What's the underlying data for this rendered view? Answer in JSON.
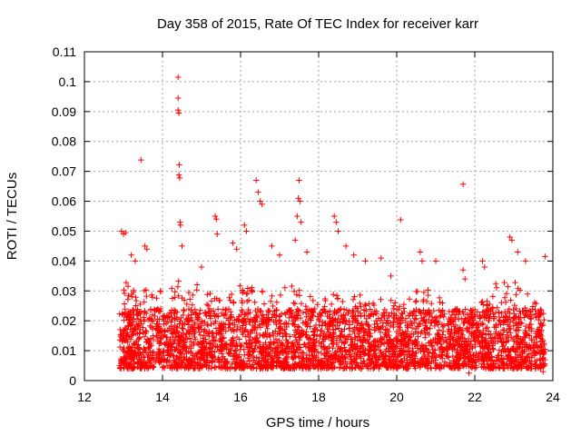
{
  "chart_data": {
    "type": "scatter",
    "title": "Day 358 of 2015, Rate Of TEC Index for receiver karr",
    "xlabel": "GPS time / hours",
    "ylabel": "ROTI / TECUs",
    "xlim": [
      12,
      24
    ],
    "ylim": [
      0,
      0.11
    ],
    "xticks": [
      12,
      14,
      16,
      18,
      20,
      22,
      24
    ],
    "yticks": [
      0,
      0.01,
      0.02,
      0.03,
      0.04,
      0.05,
      0.06,
      0.07,
      0.08,
      0.09,
      0.1,
      0.11
    ],
    "xtick_labels": [
      "12",
      "14",
      "16",
      "18",
      "20",
      "22",
      "24"
    ],
    "ytick_labels": [
      "0",
      "0.01",
      "0.02",
      "0.03",
      "0.04",
      "0.05",
      "0.06",
      "0.07",
      "0.08",
      "0.09",
      "0.1",
      "0.11"
    ],
    "grid": true,
    "marker": "+",
    "color": "#ff0000",
    "series": [
      {
        "name": "ROTI",
        "time_range": [
          12.9,
          23.8
        ],
        "points": [
          [
            14.4,
            0.1015
          ],
          [
            14.4,
            0.0945
          ],
          [
            14.4,
            0.0905
          ],
          [
            14.42,
            0.0895
          ],
          [
            14.43,
            0.0722
          ],
          [
            14.42,
            0.0688
          ],
          [
            14.44,
            0.0678
          ],
          [
            13.45,
            0.0738
          ],
          [
            21.7,
            0.0657
          ],
          [
            20.1,
            0.0538
          ],
          [
            16.4,
            0.067
          ],
          [
            16.45,
            0.063
          ],
          [
            16.5,
            0.06
          ],
          [
            16.55,
            0.059
          ],
          [
            17.5,
            0.067
          ],
          [
            17.48,
            0.061
          ],
          [
            17.52,
            0.06
          ],
          [
            17.45,
            0.055
          ],
          [
            17.55,
            0.053
          ],
          [
            17.4,
            0.047
          ],
          [
            18.4,
            0.055
          ],
          [
            18.45,
            0.053
          ],
          [
            18.5,
            0.05
          ],
          [
            15.35,
            0.055
          ],
          [
            15.38,
            0.054
          ],
          [
            15.4,
            0.049
          ],
          [
            16.1,
            0.052
          ],
          [
            16.15,
            0.05
          ],
          [
            14.45,
            0.053
          ],
          [
            14.46,
            0.052
          ],
          [
            14.5,
            0.045
          ],
          [
            12.95,
            0.05
          ],
          [
            13.0,
            0.049
          ],
          [
            13.05,
            0.0495
          ],
          [
            13.55,
            0.045
          ],
          [
            13.6,
            0.044
          ],
          [
            13.3,
            0.04
          ],
          [
            13.2,
            0.042
          ],
          [
            15.8,
            0.046
          ],
          [
            15.9,
            0.044
          ],
          [
            16.8,
            0.045
          ],
          [
            17.0,
            0.042
          ],
          [
            17.7,
            0.043
          ],
          [
            18.7,
            0.045
          ],
          [
            18.9,
            0.042
          ],
          [
            19.2,
            0.04
          ],
          [
            19.6,
            0.041
          ],
          [
            20.6,
            0.043
          ],
          [
            20.65,
            0.04
          ],
          [
            21.0,
            0.04
          ],
          [
            21.7,
            0.037
          ],
          [
            21.75,
            0.034
          ],
          [
            22.2,
            0.04
          ],
          [
            22.25,
            0.038
          ],
          [
            22.9,
            0.048
          ],
          [
            22.95,
            0.047
          ],
          [
            23.1,
            0.043
          ],
          [
            23.3,
            0.04
          ],
          [
            23.8,
            0.0415
          ],
          [
            21.75,
            0.0065
          ],
          [
            21.85,
            0.0025
          ],
          [
            23.75,
            0.003
          ],
          [
            19.85,
            0.035
          ],
          [
            15.0,
            0.038
          ]
        ],
        "density_profile": {
          "note": "bulk of points between 0.003 and 0.03 TECU/s across 12.9–23.8 h",
          "base_low": 0.004,
          "base_high": 0.024,
          "x": [
            12.9,
            13.3,
            13.7,
            14.1,
            14.5,
            15.0,
            15.5,
            16.0,
            16.5,
            17.0,
            17.5,
            18.0,
            18.5,
            19.0,
            19.5,
            20.0,
            20.5,
            21.0,
            21.5,
            22.0,
            22.5,
            23.0,
            23.5,
            23.8
          ],
          "upper": [
            0.035,
            0.033,
            0.03,
            0.03,
            0.035,
            0.032,
            0.028,
            0.033,
            0.03,
            0.031,
            0.032,
            0.028,
            0.032,
            0.03,
            0.028,
            0.027,
            0.032,
            0.03,
            0.024,
            0.023,
            0.033,
            0.034,
            0.027,
            0.025
          ]
        }
      }
    ]
  }
}
